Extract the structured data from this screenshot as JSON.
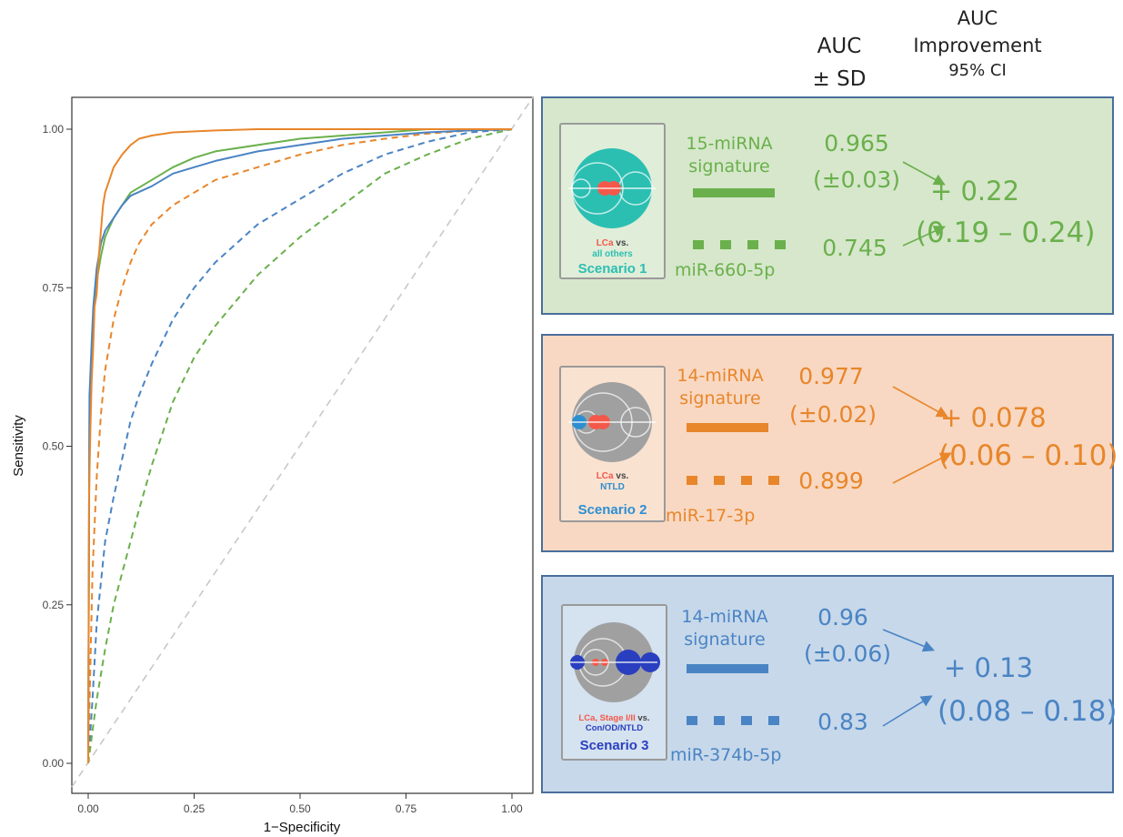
{
  "header": {
    "auc_top": "AUC",
    "auc_bottom": "± SD",
    "imp_line1": "AUC",
    "imp_line2": "Improvement",
    "imp_line3": "95% CI"
  },
  "chart_data": {
    "type": "line",
    "xlabel": "1−Specificity",
    "ylabel": "Sensitivity",
    "xlim": [
      0,
      1
    ],
    "ylim": [
      0,
      1
    ],
    "xticks": [
      "0.00",
      "0.25",
      "0.50",
      "0.75",
      "1.00"
    ],
    "yticks": [
      "0.00",
      "0.25",
      "0.50",
      "0.75",
      "1.00"
    ],
    "grid": false,
    "diagonal_reference": true,
    "series": [
      {
        "color": "#e8862b",
        "style": "solid",
        "x": [
          0,
          0.002,
          0.005,
          0.008,
          0.012,
          0.015,
          0.02,
          0.025,
          0.03,
          0.035,
          0.04,
          0.05,
          0.06,
          0.07,
          0.08,
          0.1,
          0.12,
          0.15,
          0.2,
          0.3,
          0.4,
          0.5,
          0.7,
          1.0
        ],
        "y": [
          0,
          0.42,
          0.52,
          0.6,
          0.66,
          0.72,
          0.74,
          0.8,
          0.84,
          0.88,
          0.9,
          0.92,
          0.94,
          0.95,
          0.96,
          0.975,
          0.985,
          0.99,
          0.995,
          0.998,
          1,
          1,
          1,
          1
        ]
      },
      {
        "color": "#6ab04c",
        "style": "solid",
        "x": [
          0,
          0.003,
          0.008,
          0.012,
          0.02,
          0.03,
          0.04,
          0.06,
          0.08,
          0.1,
          0.15,
          0.2,
          0.25,
          0.3,
          0.4,
          0.5,
          0.6,
          0.7,
          0.8,
          1.0
        ],
        "y": [
          0,
          0.55,
          0.64,
          0.7,
          0.76,
          0.8,
          0.83,
          0.86,
          0.88,
          0.9,
          0.92,
          0.94,
          0.955,
          0.965,
          0.975,
          0.985,
          0.99,
          0.995,
          1,
          1
        ]
      },
      {
        "color": "#4a84c4",
        "style": "solid",
        "x": [
          0,
          0.003,
          0.008,
          0.012,
          0.02,
          0.03,
          0.04,
          0.06,
          0.08,
          0.1,
          0.15,
          0.2,
          0.25,
          0.3,
          0.4,
          0.5,
          0.6,
          0.7,
          0.8,
          0.9,
          1.0
        ],
        "y": [
          0,
          0.58,
          0.66,
          0.72,
          0.78,
          0.82,
          0.84,
          0.86,
          0.88,
          0.895,
          0.91,
          0.93,
          0.94,
          0.95,
          0.965,
          0.975,
          0.985,
          0.99,
          0.995,
          0.998,
          1
        ]
      },
      {
        "color": "#e8862b",
        "style": "dashed",
        "x": [
          0,
          0.01,
          0.02,
          0.03,
          0.04,
          0.06,
          0.08,
          0.1,
          0.12,
          0.15,
          0.2,
          0.25,
          0.3,
          0.4,
          0.5,
          0.6,
          0.7,
          0.8,
          0.9,
          1.0
        ],
        "y": [
          0,
          0.3,
          0.45,
          0.55,
          0.62,
          0.7,
          0.75,
          0.79,
          0.82,
          0.85,
          0.88,
          0.9,
          0.92,
          0.94,
          0.96,
          0.975,
          0.985,
          0.993,
          0.998,
          1
        ]
      },
      {
        "color": "#4a84c4",
        "style": "dashed",
        "x": [
          0,
          0.01,
          0.02,
          0.04,
          0.06,
          0.08,
          0.1,
          0.12,
          0.15,
          0.2,
          0.25,
          0.3,
          0.35,
          0.4,
          0.5,
          0.6,
          0.7,
          0.8,
          0.9,
          1.0
        ],
        "y": [
          0,
          0.1,
          0.22,
          0.35,
          0.42,
          0.48,
          0.54,
          0.58,
          0.63,
          0.7,
          0.75,
          0.79,
          0.82,
          0.85,
          0.89,
          0.93,
          0.96,
          0.98,
          0.995,
          1
        ]
      },
      {
        "color": "#6ab04c",
        "style": "dashed",
        "x": [
          0,
          0.02,
          0.04,
          0.06,
          0.08,
          0.1,
          0.12,
          0.15,
          0.18,
          0.2,
          0.25,
          0.3,
          0.35,
          0.4,
          0.5,
          0.6,
          0.7,
          0.8,
          0.9,
          1.0
        ],
        "y": [
          0,
          0.1,
          0.18,
          0.25,
          0.3,
          0.35,
          0.4,
          0.47,
          0.53,
          0.57,
          0.64,
          0.69,
          0.73,
          0.77,
          0.83,
          0.88,
          0.93,
          0.96,
          0.985,
          1
        ]
      }
    ]
  },
  "panels": [
    {
      "id": "s1",
      "bg": "#d6e7cb",
      "color": "#6ab04c",
      "signature_line1": "15-miRNA",
      "signature_line2": "signature",
      "single_mirna": "miR-660-5p",
      "auc_signature": "0.965",
      "auc_sd": "(±0.03)",
      "auc_single": "0.745",
      "improvement": "+ 0.22",
      "ci": "(0.19 – 0.24)",
      "caption_red": "LCa",
      "caption_mid": "vs.",
      "caption_second": "all others",
      "scenario": "Scenario 1",
      "scenario_color": "#2bbfb2"
    },
    {
      "id": "s2",
      "bg": "#f8d8c2",
      "color": "#e8862b",
      "signature_line1": "14-miRNA",
      "signature_line2": "signature",
      "single_mirna": "miR-17-3p",
      "auc_signature": "0.977",
      "auc_sd": "(±0.02)",
      "auc_single": "0.899",
      "improvement": "+ 0.078",
      "ci": "(0.06 – 0.10)",
      "caption_red": "LCa",
      "caption_mid": "vs.",
      "caption_second": "NTLD",
      "scenario": "Scenario 2",
      "scenario_color": "#2d8fd0"
    },
    {
      "id": "s3",
      "bg": "#c7d8ea",
      "color": "#4a84c4",
      "signature_line1": "14-miRNA",
      "signature_line2": "signature",
      "single_mirna": "miR-374b-5p",
      "auc_signature": "0.96",
      "auc_sd": "(±0.06)",
      "auc_single": "0.83",
      "improvement": "+ 0.13",
      "ci": "(0.08 – 0.18)",
      "caption_red": "LCa, Stage I/II",
      "caption_mid": "vs.",
      "caption_second": "Con/OD/NTLD",
      "scenario": "Scenario 3",
      "scenario_color": "#2a3fbf"
    }
  ]
}
